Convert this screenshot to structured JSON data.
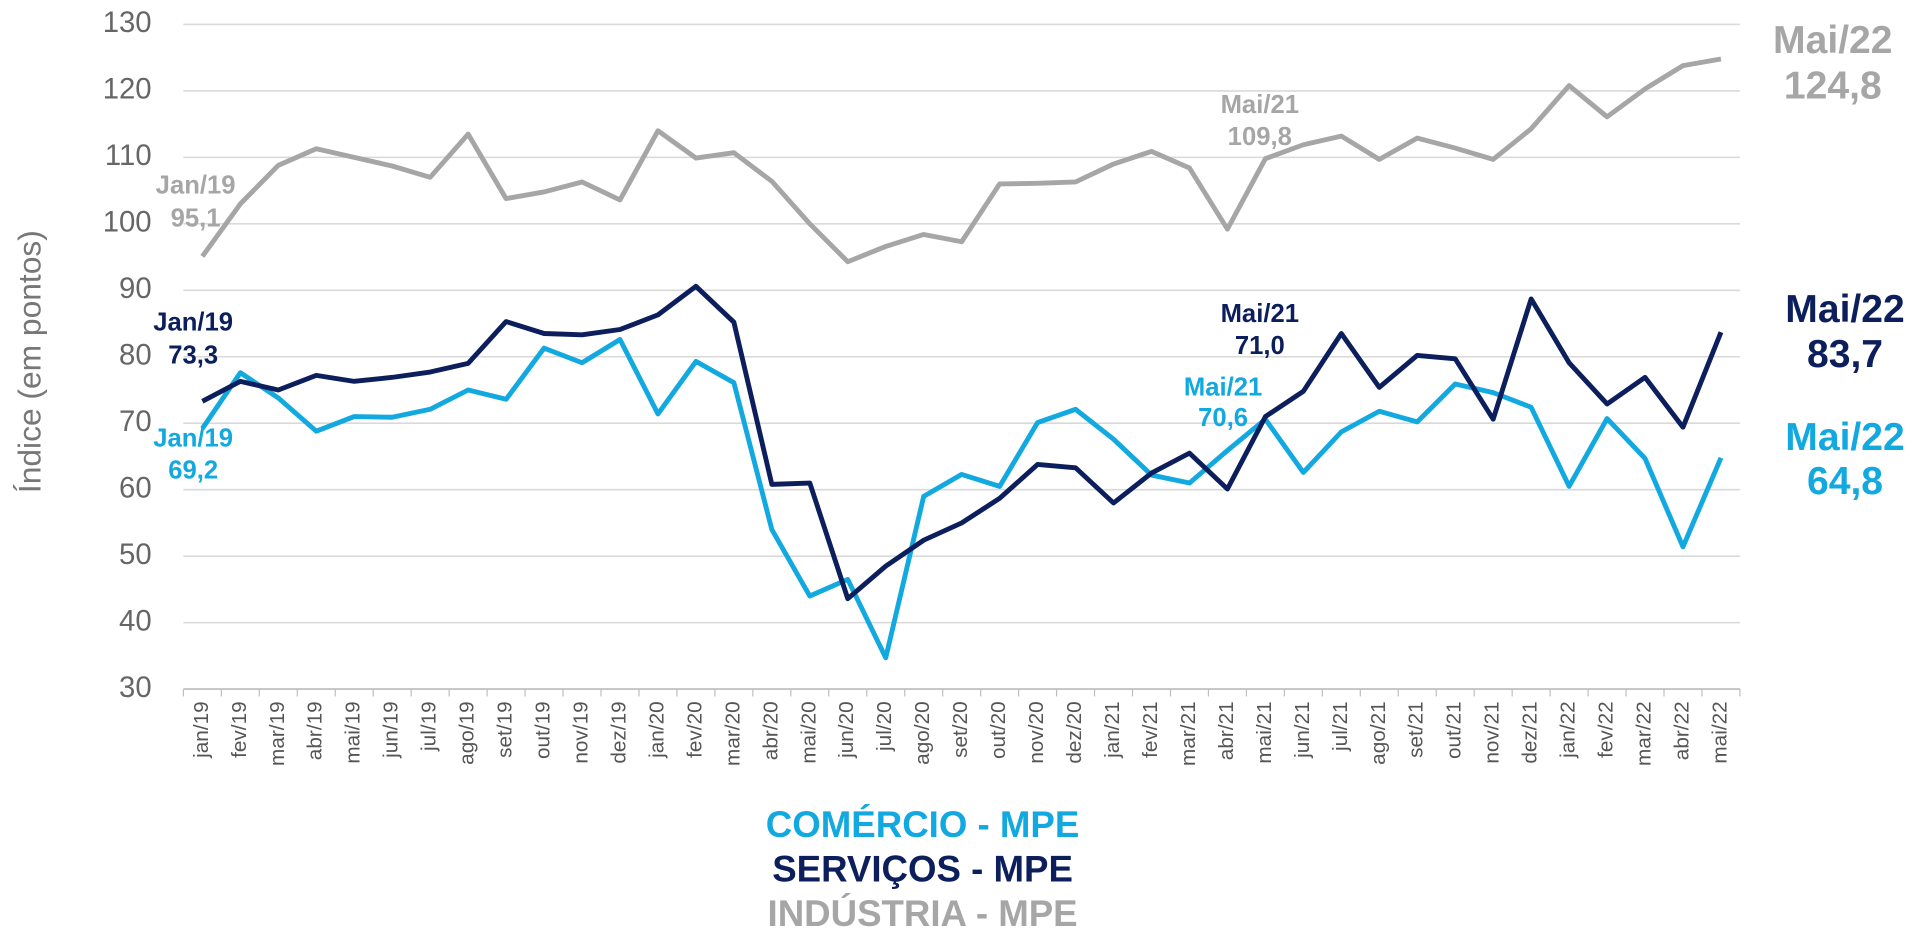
{
  "chart_data": {
    "type": "line",
    "y_label": "Índice (em pontos)",
    "categories": [
      "jan/19",
      "fev/19",
      "mar/19",
      "abr/19",
      "mai/19",
      "jun/19",
      "jul/19",
      "ago/19",
      "set/19",
      "out/19",
      "nov/19",
      "dez/19",
      "jan/20",
      "fev/20",
      "mar/20",
      "abr/20",
      "mai/20",
      "jun/20",
      "jul/20",
      "ago/20",
      "set/20",
      "out/20",
      "nov/20",
      "dez/20",
      "jan/21",
      "fev/21",
      "mar/21",
      "abr/21",
      "mai/21",
      "jun/21",
      "jul/21",
      "ago/21",
      "set/21",
      "out/21",
      "nov/21",
      "dez/21",
      "jan/22",
      "fev/22",
      "mar/22",
      "abr/22",
      "mai/22"
    ],
    "ylim": [
      30,
      130
    ],
    "yticks": [
      30,
      40,
      50,
      60,
      70,
      80,
      90,
      100,
      110,
      120,
      130
    ],
    "grid": true,
    "series": [
      {
        "name": "COMÉRCIO - MPE",
        "color": "#12a8e0",
        "values": [
          69.2,
          77.6,
          73.8,
          68.8,
          71,
          70.9,
          72.1,
          75,
          73.6,
          81.3,
          79.1,
          82.6,
          71.4,
          79.3,
          76.1,
          54,
          44,
          46.5,
          34.7,
          59,
          62.3,
          60.5,
          70.1,
          72.1,
          67.6,
          62.2,
          61,
          65.9,
          70.6,
          62.6,
          68.7,
          71.8,
          70.2,
          75.9,
          74.6,
          72.4,
          60.5,
          70.7,
          64.7,
          51.4,
          64.8
        ],
        "point_labels": [
          "Jan/19",
          null,
          null,
          null,
          null,
          null,
          null,
          null,
          null,
          null,
          null,
          null,
          null,
          null,
          null,
          null,
          null,
          null,
          null,
          null,
          null,
          null,
          null,
          null,
          null,
          null,
          null,
          null,
          "Mai/21",
          null,
          null,
          null,
          null,
          null,
          null,
          null,
          null,
          null,
          null,
          null,
          "Mai/22"
        ],
        "value_labels": [
          "69,2",
          null,
          null,
          null,
          null,
          null,
          null,
          null,
          null,
          null,
          null,
          null,
          null,
          null,
          null,
          null,
          null,
          null,
          null,
          null,
          null,
          null,
          null,
          null,
          null,
          null,
          null,
          null,
          "70,6",
          null,
          null,
          null,
          null,
          null,
          null,
          null,
          null,
          null,
          null,
          null,
          "64,8"
        ]
      },
      {
        "name": "SERVIÇOS - MPE",
        "color": "#0c1f5c",
        "values": [
          73.3,
          76.3,
          75,
          77.2,
          76.3,
          76.9,
          77.7,
          79,
          85.3,
          83.5,
          83.3,
          84.1,
          86.3,
          90.6,
          85.2,
          60.8,
          61,
          43.6,
          48.5,
          52.4,
          55,
          58.7,
          63.8,
          63.3,
          58,
          62.5,
          65.5,
          60.1,
          71.0,
          74.8,
          83.5,
          75.4,
          80.2,
          79.7,
          70.6,
          88.7,
          79.1,
          72.9,
          76.9,
          69.4,
          83.7
        ],
        "point_labels": [
          "Jan/19",
          null,
          null,
          null,
          null,
          null,
          null,
          null,
          null,
          null,
          null,
          null,
          null,
          null,
          null,
          null,
          null,
          null,
          null,
          null,
          null,
          null,
          null,
          null,
          null,
          null,
          null,
          null,
          "Mai/21",
          null,
          null,
          null,
          null,
          null,
          null,
          null,
          null,
          null,
          null,
          null,
          "Mai/22"
        ],
        "value_labels": [
          "73,3",
          null,
          null,
          null,
          null,
          null,
          null,
          null,
          null,
          null,
          null,
          null,
          null,
          null,
          null,
          null,
          null,
          null,
          null,
          null,
          null,
          null,
          null,
          null,
          null,
          null,
          null,
          null,
          "71,0",
          null,
          null,
          null,
          null,
          null,
          null,
          null,
          null,
          null,
          null,
          null,
          "83,7"
        ]
      },
      {
        "name": "INDÚSTRIA - MPE",
        "color": "#a6a6a6",
        "values": [
          95.1,
          103,
          108.8,
          111.3,
          110,
          108.7,
          107,
          113.5,
          103.8,
          104.8,
          106.3,
          103.6,
          114,
          109.9,
          110.7,
          106.4,
          100,
          94.3,
          96.6,
          98.4,
          97.3,
          106,
          106.1,
          106.3,
          109,
          110.9,
          108.4,
          99.2,
          109.8,
          111.9,
          113.2,
          109.7,
          112.9,
          111.4,
          109.7,
          114.3,
          120.8,
          116.1,
          120.3,
          123.8,
          124.8
        ],
        "point_labels": [
          "Jan/19",
          null,
          null,
          null,
          null,
          null,
          null,
          null,
          null,
          null,
          null,
          null,
          null,
          null,
          null,
          null,
          null,
          null,
          null,
          null,
          null,
          null,
          null,
          null,
          null,
          null,
          null,
          null,
          "Mai/21",
          null,
          null,
          null,
          null,
          null,
          null,
          null,
          null,
          null,
          null,
          null,
          "Mai/22"
        ],
        "value_labels": [
          "95,1",
          null,
          null,
          null,
          null,
          null,
          null,
          null,
          null,
          null,
          null,
          null,
          null,
          null,
          null,
          null,
          null,
          null,
          null,
          null,
          null,
          null,
          null,
          null,
          null,
          null,
          null,
          null,
          "109,8",
          null,
          null,
          null,
          null,
          null,
          null,
          null,
          null,
          null,
          null,
          null,
          "124,8"
        ]
      }
    ]
  }
}
